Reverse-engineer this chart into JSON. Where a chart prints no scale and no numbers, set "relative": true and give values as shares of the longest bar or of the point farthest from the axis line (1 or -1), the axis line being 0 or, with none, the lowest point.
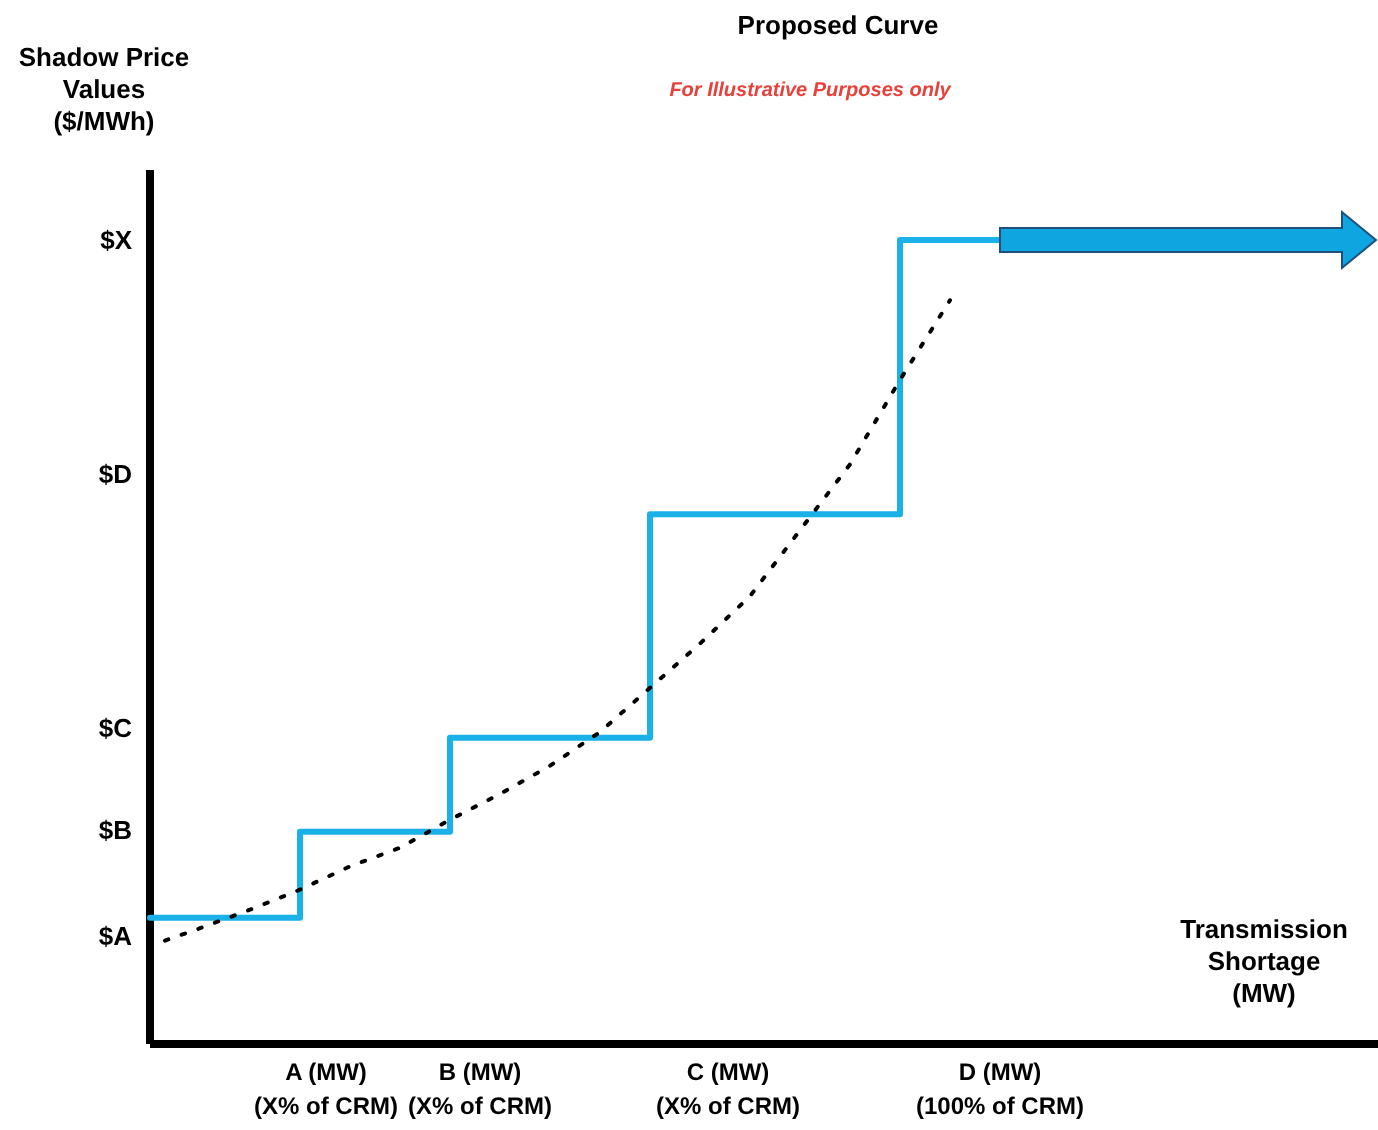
{
  "chart_data": {
    "type": "step",
    "title": "Proposed Curve",
    "subtitle": "For Illustrative Purposes only",
    "ylabel": "Shadow Price\nValues\n($/MWh)",
    "xlabel": "Transmission\nShortage\n(MW)",
    "relative": true,
    "categories": [
      null,
      null,
      null,
      null,
      null,
      null,
      null,
      null,
      null,
      null,
      null,
      null,
      null,
      null,
      null,
      null,
      null,
      null,
      null,
      null,
      null,
      null,
      null,
      null,
      null
    ],
    "annotations": [
      "$A",
      "$B",
      "$C",
      "$D",
      "$X",
      "A (MW)\n(X% of CRM)",
      "B (MW)\n(X% of CRM)",
      "C (MW)\n(X% of CRM)",
      "D (MW)\n(100% of CRM)"
    ],
    "series": [
      {
        "color": "#1ab0e8",
        "line_style": "solid",
        "values": [
          0.157,
          0.157,
          0.157,
          0.264,
          0.264,
          0.264,
          0.381,
          0.381,
          0.381,
          0.381,
          0.659,
          0.659,
          0.659,
          0.659,
          0.659,
          1,
          1,
          1,
          null,
          null,
          null,
          null,
          null,
          null,
          null
        ]
      },
      {
        "type": "line",
        "color": "#000000",
        "line_style": "dotted",
        "values": [
          0.122,
          0.144,
          0.167,
          0.192,
          0.221,
          0.244,
          0.279,
          0.311,
          0.346,
          0.388,
          0.443,
          0.498,
          0.557,
          0.639,
          0.721,
          0.826,
          0.925,
          null,
          null,
          null,
          null,
          null,
          null,
          null,
          null
        ]
      }
    ]
  }
}
